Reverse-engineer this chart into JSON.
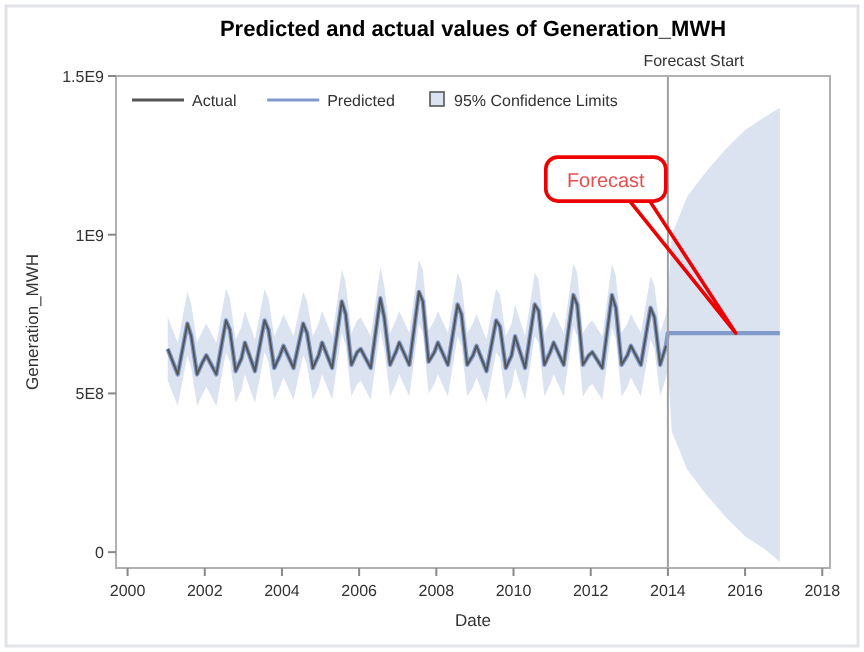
{
  "chart_data": {
    "type": "line",
    "title": "Predicted and actual values of Generation_MWH",
    "xlabel": "Date",
    "ylabel": "Generation_MWH",
    "xlim": [
      1999.7,
      2018.2
    ],
    "xticks": [
      2000,
      2002,
      2004,
      2006,
      2008,
      2010,
      2012,
      2014,
      2016,
      2018
    ],
    "ylim": [
      -50000000.0,
      1500000000.0
    ],
    "yticks": [
      {
        "value": 0,
        "label": "0"
      },
      {
        "value": 500000000.0,
        "label": "5E8"
      },
      {
        "value": 1000000000.0,
        "label": "1E9"
      },
      {
        "value": 1500000000.0,
        "label": "1.5E9"
      }
    ],
    "grid": false,
    "legend": "top left",
    "legend_title": "95% Confidence Limits",
    "ref_lines": [
      {
        "axis": "x",
        "value": 2014,
        "label": "Forecast Start",
        "color": "#a0a0a0"
      }
    ],
    "annotations": [
      "Forecast"
    ],
    "series": [
      {
        "name": "Predicted",
        "color": "#7f9acb",
        "x": [
          2001.04,
          2001.3,
          2001.55,
          2001.65,
          2001.8,
          2001.95,
          2002.04,
          2002.3,
          2002.55,
          2002.65,
          2002.8,
          2002.95,
          2003.04,
          2003.3,
          2003.55,
          2003.65,
          2003.8,
          2003.95,
          2004.04,
          2004.3,
          2004.55,
          2004.65,
          2004.8,
          2004.95,
          2005.04,
          2005.3,
          2005.55,
          2005.65,
          2005.8,
          2005.95,
          2006.04,
          2006.3,
          2006.55,
          2006.65,
          2006.8,
          2006.95,
          2007.04,
          2007.3,
          2007.55,
          2007.65,
          2007.8,
          2007.95,
          2008.04,
          2008.3,
          2008.55,
          2008.65,
          2008.8,
          2008.95,
          2009.04,
          2009.3,
          2009.55,
          2009.65,
          2009.8,
          2009.95,
          2010.04,
          2010.3,
          2010.55,
          2010.65,
          2010.8,
          2010.95,
          2011.04,
          2011.3,
          2011.55,
          2011.65,
          2011.8,
          2011.95,
          2012.04,
          2012.3,
          2012.55,
          2012.65,
          2012.8,
          2012.95,
          2013.04,
          2013.3,
          2013.55,
          2013.65,
          2013.8,
          2013.95,
          2014,
          2014.1,
          2014.5,
          2015,
          2015.5,
          2016,
          2016.5,
          2016.9
        ],
        "values": [
          640000000.0,
          560000000.0,
          720000000.0,
          680000000.0,
          560000000.0,
          600000000.0,
          620000000.0,
          560000000.0,
          730000000.0,
          700000000.0,
          570000000.0,
          610000000.0,
          660000000.0,
          570000000.0,
          730000000.0,
          700000000.0,
          580000000.0,
          620000000.0,
          650000000.0,
          580000000.0,
          720000000.0,
          690000000.0,
          580000000.0,
          620000000.0,
          660000000.0,
          580000000.0,
          790000000.0,
          750000000.0,
          590000000.0,
          630000000.0,
          640000000.0,
          580000000.0,
          800000000.0,
          740000000.0,
          590000000.0,
          630000000.0,
          660000000.0,
          590000000.0,
          820000000.0,
          790000000.0,
          600000000.0,
          630000000.0,
          660000000.0,
          590000000.0,
          780000000.0,
          750000000.0,
          590000000.0,
          620000000.0,
          650000000.0,
          570000000.0,
          730000000.0,
          710000000.0,
          580000000.0,
          620000000.0,
          680000000.0,
          580000000.0,
          780000000.0,
          760000000.0,
          590000000.0,
          630000000.0,
          660000000.0,
          590000000.0,
          810000000.0,
          780000000.0,
          590000000.0,
          620000000.0,
          630000000.0,
          580000000.0,
          810000000.0,
          770000000.0,
          590000000.0,
          620000000.0,
          650000000.0,
          590000000.0,
          770000000.0,
          740000000.0,
          590000000.0,
          650000000.0,
          690000000.0,
          690000000.0,
          690000000.0,
          690000000.0,
          690000000.0,
          690000000.0,
          690000000.0,
          690000000.0
        ],
        "lower": [
          540000000.0,
          460000000.0,
          620000000.0,
          580000000.0,
          460000000.0,
          500000000.0,
          520000000.0,
          460000000.0,
          630000000.0,
          600000000.0,
          470000000.0,
          510000000.0,
          560000000.0,
          470000000.0,
          630000000.0,
          600000000.0,
          480000000.0,
          520000000.0,
          550000000.0,
          480000000.0,
          620000000.0,
          590000000.0,
          480000000.0,
          520000000.0,
          560000000.0,
          480000000.0,
          690000000.0,
          650000000.0,
          490000000.0,
          530000000.0,
          540000000.0,
          480000000.0,
          700000000.0,
          640000000.0,
          490000000.0,
          530000000.0,
          560000000.0,
          490000000.0,
          720000000.0,
          690000000.0,
          500000000.0,
          530000000.0,
          560000000.0,
          490000000.0,
          680000000.0,
          650000000.0,
          490000000.0,
          520000000.0,
          550000000.0,
          470000000.0,
          630000000.0,
          610000000.0,
          480000000.0,
          520000000.0,
          580000000.0,
          480000000.0,
          680000000.0,
          660000000.0,
          490000000.0,
          530000000.0,
          560000000.0,
          490000000.0,
          710000000.0,
          680000000.0,
          490000000.0,
          520000000.0,
          530000000.0,
          480000000.0,
          710000000.0,
          670000000.0,
          490000000.0,
          520000000.0,
          550000000.0,
          490000000.0,
          670000000.0,
          640000000.0,
          490000000.0,
          550000000.0,
          580000000.0,
          380000000.0,
          260000000.0,
          180000000.0,
          110000000.0,
          50000000.0,
          10000000.0,
          -30000000.0
        ],
        "upper": [
          740000000.0,
          660000000.0,
          820000000.0,
          780000000.0,
          660000000.0,
          700000000.0,
          720000000.0,
          660000000.0,
          830000000.0,
          800000000.0,
          670000000.0,
          710000000.0,
          760000000.0,
          670000000.0,
          830000000.0,
          800000000.0,
          680000000.0,
          720000000.0,
          750000000.0,
          680000000.0,
          820000000.0,
          790000000.0,
          680000000.0,
          720000000.0,
          760000000.0,
          680000000.0,
          890000000.0,
          850000000.0,
          690000000.0,
          730000000.0,
          740000000.0,
          680000000.0,
          900000000.0,
          840000000.0,
          690000000.0,
          730000000.0,
          760000000.0,
          690000000.0,
          920000000.0,
          890000000.0,
          700000000.0,
          730000000.0,
          760000000.0,
          690000000.0,
          880000000.0,
          850000000.0,
          690000000.0,
          720000000.0,
          750000000.0,
          670000000.0,
          830000000.0,
          810000000.0,
          680000000.0,
          720000000.0,
          780000000.0,
          680000000.0,
          880000000.0,
          860000000.0,
          690000000.0,
          730000000.0,
          760000000.0,
          690000000.0,
          910000000.0,
          880000000.0,
          690000000.0,
          720000000.0,
          730000000.0,
          680000000.0,
          910000000.0,
          870000000.0,
          690000000.0,
          720000000.0,
          750000000.0,
          690000000.0,
          870000000.0,
          840000000.0,
          690000000.0,
          750000000.0,
          800000000.0,
          1000000000.0,
          1120000000.0,
          1200000000.0,
          1270000000.0,
          1330000000.0,
          1370000000.0,
          1400000000.0
        ]
      },
      {
        "name": "Actual",
        "color": "#555555",
        "x": [
          2001.04,
          2001.3,
          2001.55,
          2001.65,
          2001.8,
          2001.95,
          2002.04,
          2002.3,
          2002.55,
          2002.65,
          2002.8,
          2002.95,
          2003.04,
          2003.3,
          2003.55,
          2003.65,
          2003.8,
          2003.95,
          2004.04,
          2004.3,
          2004.55,
          2004.65,
          2004.8,
          2004.95,
          2005.04,
          2005.3,
          2005.55,
          2005.65,
          2005.8,
          2005.95,
          2006.04,
          2006.3,
          2006.55,
          2006.65,
          2006.8,
          2006.95,
          2007.04,
          2007.3,
          2007.55,
          2007.65,
          2007.8,
          2007.95,
          2008.04,
          2008.3,
          2008.55,
          2008.65,
          2008.8,
          2008.95,
          2009.04,
          2009.3,
          2009.55,
          2009.65,
          2009.8,
          2009.95,
          2010.04,
          2010.3,
          2010.55,
          2010.65,
          2010.8,
          2010.95,
          2011.04,
          2011.3,
          2011.55,
          2011.65,
          2011.8,
          2011.95,
          2012.04,
          2012.3,
          2012.55,
          2012.65,
          2012.8,
          2012.95,
          2013.04,
          2013.3,
          2013.55,
          2013.65,
          2013.8,
          2013.95
        ],
        "values": [
          640000000.0,
          560000000.0,
          720000000.0,
          680000000.0,
          560000000.0,
          600000000.0,
          620000000.0,
          560000000.0,
          730000000.0,
          700000000.0,
          570000000.0,
          610000000.0,
          660000000.0,
          570000000.0,
          730000000.0,
          700000000.0,
          580000000.0,
          620000000.0,
          650000000.0,
          580000000.0,
          720000000.0,
          690000000.0,
          580000000.0,
          620000000.0,
          660000000.0,
          580000000.0,
          790000000.0,
          750000000.0,
          590000000.0,
          630000000.0,
          640000000.0,
          580000000.0,
          800000000.0,
          740000000.0,
          590000000.0,
          630000000.0,
          660000000.0,
          590000000.0,
          820000000.0,
          790000000.0,
          600000000.0,
          630000000.0,
          660000000.0,
          590000000.0,
          780000000.0,
          750000000.0,
          590000000.0,
          620000000.0,
          650000000.0,
          570000000.0,
          730000000.0,
          710000000.0,
          580000000.0,
          620000000.0,
          680000000.0,
          580000000.0,
          780000000.0,
          760000000.0,
          590000000.0,
          630000000.0,
          660000000.0,
          590000000.0,
          810000000.0,
          780000000.0,
          590000000.0,
          620000000.0,
          630000000.0,
          580000000.0,
          810000000.0,
          770000000.0,
          590000000.0,
          620000000.0,
          650000000.0,
          590000000.0,
          770000000.0,
          740000000.0,
          590000000.0,
          650000000.0
        ]
      }
    ]
  }
}
